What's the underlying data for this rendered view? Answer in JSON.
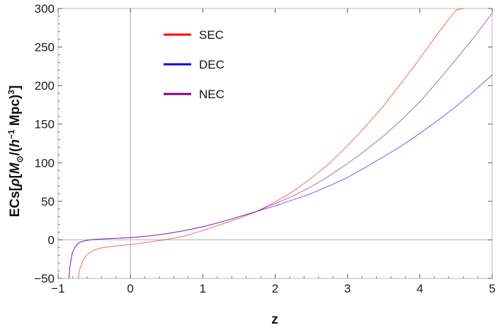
{
  "chart_data": {
    "type": "line",
    "xlabel": "z",
    "ylabel": {
      "prefix": "ECs[",
      "rho": "ρ",
      "bracket_open": "[",
      "mass": "M",
      "mass_sub": "⊙",
      "slash_paren": "/(",
      "h": "h",
      "h_exp": "−1",
      "mpc": " Mpc)",
      "cube": "3",
      "close": "]"
    },
    "xlim": [
      -1,
      5
    ],
    "ylim": [
      -50,
      300
    ],
    "xticks": [
      -1,
      0,
      1,
      2,
      3,
      4,
      5
    ],
    "xtick_labels": [
      "−1",
      "0",
      "1",
      "2",
      "3",
      "4",
      "5"
    ],
    "yticks": [
      -50,
      0,
      50,
      100,
      150,
      200,
      250,
      300
    ],
    "ytick_labels": [
      "−50",
      "0",
      "50",
      "100",
      "150",
      "200",
      "250",
      "300"
    ],
    "grid": false,
    "legend_position": "top-left",
    "series": [
      {
        "name": "SEC",
        "color": "#ff0000",
        "x": [
          -0.72,
          -0.7,
          -0.65,
          -0.6,
          -0.5,
          -0.4,
          -0.3,
          -0.2,
          0,
          0.25,
          0.5,
          0.75,
          1,
          1.25,
          1.5,
          1.75,
          2,
          2.25,
          2.5,
          2.75,
          3,
          3.25,
          3.5,
          3.75,
          4,
          4.25,
          4.5,
          4.6
        ],
        "y": [
          -50,
          -38,
          -25,
          -19,
          -13,
          -10.5,
          -9,
          -8,
          -6,
          -3,
          0.5,
          5,
          12,
          20,
          28,
          37,
          49,
          63,
          80,
          99,
          122,
          147,
          174,
          204,
          235,
          268,
          298,
          300
        ]
      },
      {
        "name": "DEC",
        "color": "#0000ff",
        "x": [
          -0.85,
          -0.84,
          -0.82,
          -0.8,
          -0.75,
          -0.7,
          -0.6,
          -0.5,
          -0.4,
          -0.2,
          0,
          0.25,
          0.5,
          0.75,
          1,
          1.25,
          1.5,
          1.75,
          2,
          2.25,
          2.5,
          2.75,
          3,
          3.25,
          3.5,
          3.75,
          4,
          4.25,
          4.5,
          4.75,
          5
        ],
        "y": [
          -50,
          -38,
          -25,
          -16,
          -7,
          -3,
          -0.5,
          0.5,
          1,
          2,
          3,
          5,
          8,
          12,
          17,
          23,
          30,
          37,
          44,
          52,
          60,
          70,
          81,
          94,
          108,
          122,
          138,
          155,
          173,
          193,
          214
        ]
      },
      {
        "name": "NEC",
        "color": "#800080",
        "x": [
          -0.85,
          -0.84,
          -0.82,
          -0.8,
          -0.75,
          -0.7,
          -0.6,
          -0.5,
          -0.4,
          -0.2,
          0,
          0.25,
          0.5,
          0.75,
          1,
          1.25,
          1.5,
          1.75,
          2,
          2.25,
          2.5,
          2.75,
          3,
          3.25,
          3.5,
          3.75,
          4,
          4.25,
          4.5,
          4.75,
          5
        ],
        "y": [
          -50,
          -38,
          -25,
          -16,
          -7,
          -3,
          -0.5,
          0.5,
          1,
          2,
          3,
          5,
          8,
          12,
          17,
          23,
          30,
          37,
          47,
          57,
          69,
          83,
          99,
          116,
          135,
          156,
          179,
          206,
          234,
          263,
          294
        ]
      }
    ]
  }
}
